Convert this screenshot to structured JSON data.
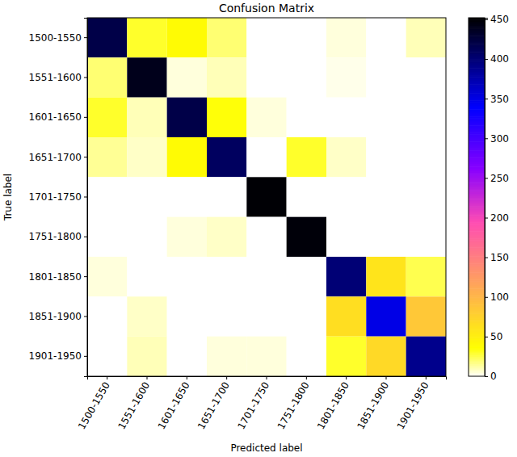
{
  "chart_data": {
    "type": "heatmap",
    "title": "Confusion Matrix",
    "x_label": "Predicted label",
    "y_label": "True label",
    "x_categories": [
      "1500-1550",
      "1551-1600",
      "1601-1650",
      "1651-1700",
      "1701-1750",
      "1751-1800",
      "1801-1850",
      "1851-1900",
      "1901-1950"
    ],
    "y_categories": [
      "1500-1550",
      "1551-1600",
      "1601-1650",
      "1651-1700",
      "1701-1750",
      "1751-1800",
      "1801-1850",
      "1851-1900",
      "1901-1950"
    ],
    "values": [
      [
        420,
        30,
        40,
        20,
        0,
        0,
        5,
        0,
        10
      ],
      [
        20,
        440,
        5,
        10,
        0,
        0,
        3,
        0,
        0
      ],
      [
        30,
        10,
        420,
        35,
        5,
        0,
        0,
        0,
        0
      ],
      [
        15,
        8,
        40,
        410,
        0,
        30,
        8,
        0,
        0
      ],
      [
        0,
        0,
        0,
        0,
        450,
        0,
        0,
        0,
        0
      ],
      [
        0,
        0,
        5,
        8,
        0,
        448,
        0,
        0,
        0
      ],
      [
        5,
        0,
        0,
        0,
        0,
        0,
        400,
        60,
        25
      ],
      [
        0,
        8,
        0,
        0,
        0,
        0,
        65,
        350,
        85
      ],
      [
        0,
        10,
        0,
        5,
        5,
        0,
        30,
        70,
        390
      ]
    ],
    "colorbar_range": [
      0,
      452
    ],
    "colorbar_ticks": [
      0,
      50,
      100,
      150,
      200,
      250,
      300,
      350,
      400,
      450
    ]
  }
}
